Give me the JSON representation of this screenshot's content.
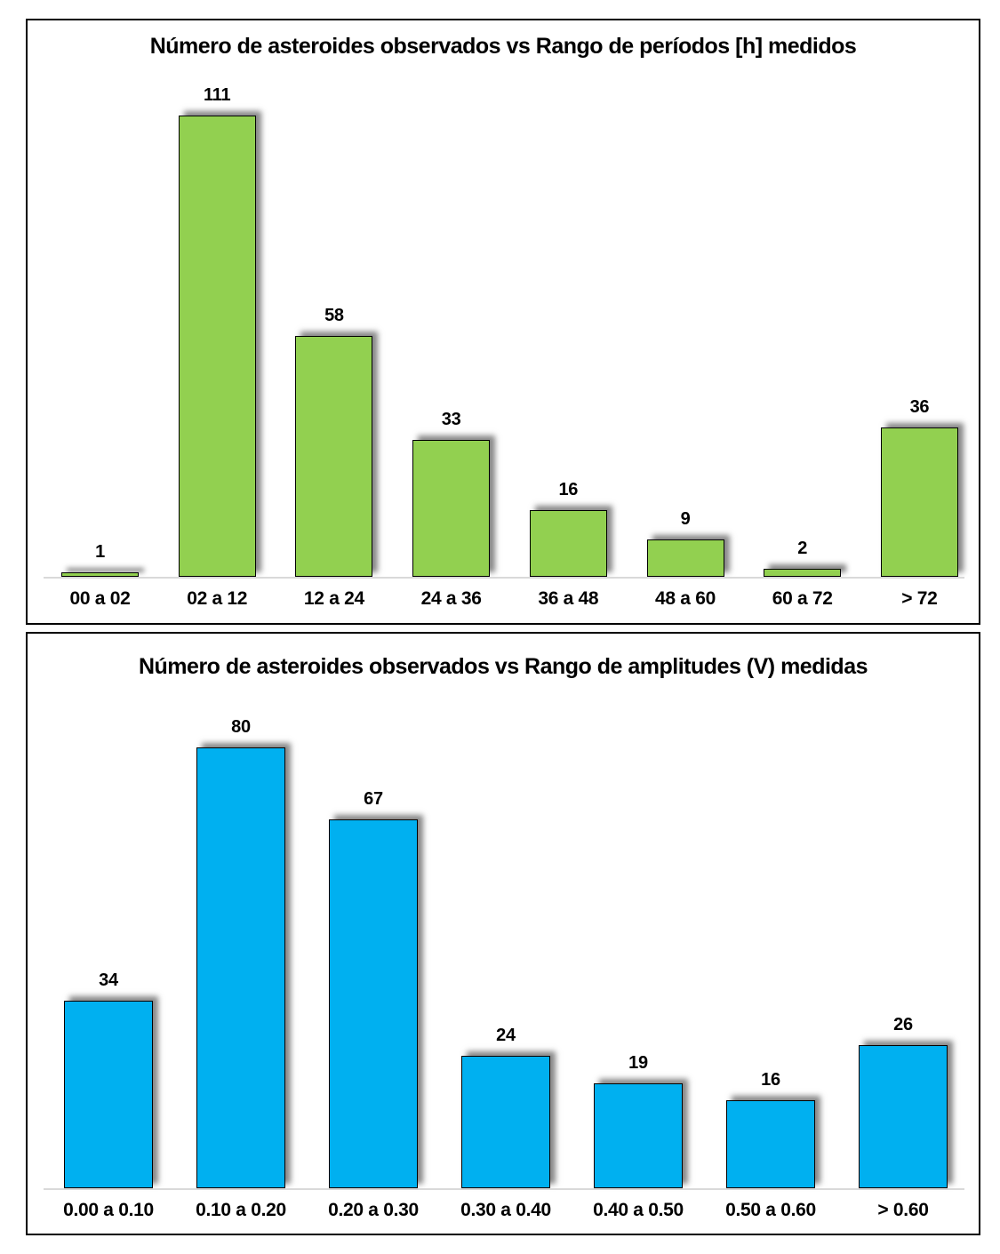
{
  "chart_data": [
    {
      "type": "bar",
      "title": "Número de asteroides observados vs Rango de períodos [h] medidos",
      "categories": [
        "00 a 02",
        "02 a 12",
        "12 a 24",
        "24 a 36",
        "36 a 48",
        "48 a 60",
        "60 a 72",
        "> 72"
      ],
      "values": [
        1,
        111,
        58,
        33,
        16,
        9,
        2,
        36
      ],
      "xlabel": "",
      "ylabel": "",
      "ylim": [
        0,
        111
      ],
      "bar_color": "#92D050",
      "bar_border_color": "#000000",
      "axis_line_color": "#D9D9D9",
      "value_labels": [
        1,
        111,
        58,
        33,
        16,
        9,
        2,
        36
      ],
      "grid": "off",
      "legend": "none"
    },
    {
      "type": "bar",
      "title": "Número de asteroides observados vs Rango de amplitudes (V) medidas",
      "categories": [
        "0.00 a 0.10",
        "0.10 a 0.20",
        "0.20 a 0.30",
        "0.30 a 0.40",
        "0.40 a 0.50",
        "0.50 a 0.60",
        "> 0.60"
      ],
      "values": [
        34,
        80,
        67,
        24,
        19,
        16,
        26
      ],
      "xlabel": "",
      "ylabel": "",
      "ylim": [
        0,
        80
      ],
      "bar_color": "#00B0F0",
      "bar_border_color": "#000000",
      "axis_line_color": "#D9D9D9",
      "value_labels": [
        34,
        80,
        67,
        24,
        19,
        16,
        26
      ],
      "grid": "off",
      "legend": "none"
    }
  ]
}
